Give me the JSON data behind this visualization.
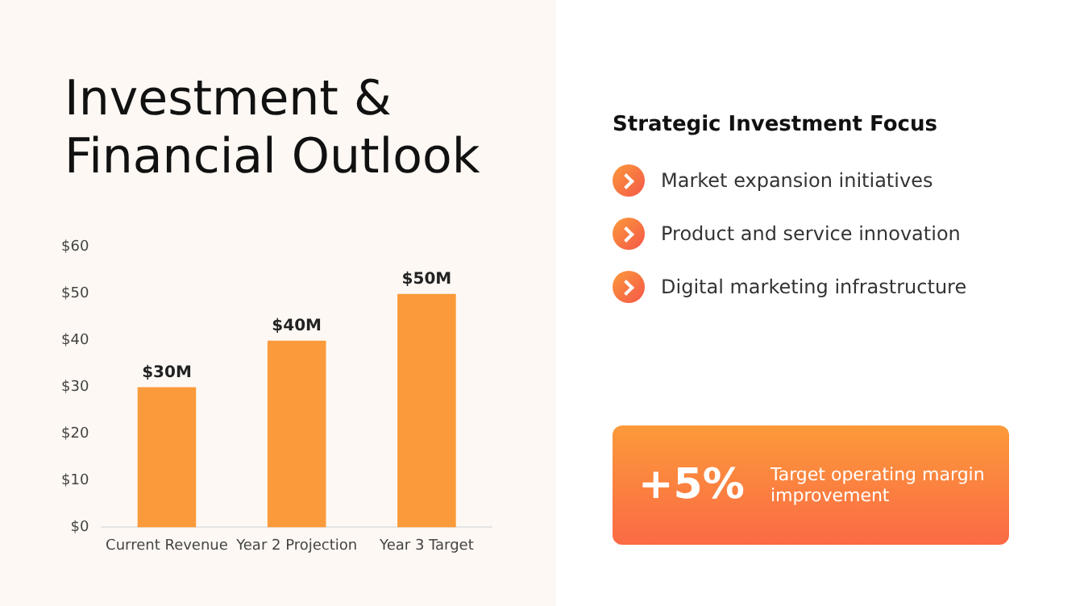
{
  "chart_data": [
    {
      "type": "bar",
      "title": "Investment & Financial Outlook",
      "categories": [
        "Current Revenue",
        "Year 2 Projection",
        "Year 3 Target"
      ],
      "values": [
        30,
        40,
        50
      ],
      "color": "#fb9a3a",
      "value_labels": [
        "$30M",
        "$40M",
        "$50M"
      ],
      "ylim": [
        0,
        60
      ],
      "yticks": [
        {
          "value": 0,
          "label": "$0"
        },
        {
          "value": 10,
          "label": "$10"
        },
        {
          "value": 20,
          "label": "$20"
        },
        {
          "value": 30,
          "label": "$30"
        },
        {
          "value": 40,
          "label": "$40"
        },
        {
          "value": 50,
          "label": "$50"
        },
        {
          "value": 60,
          "label": "$60"
        }
      ],
      "grid": false
    },
    {
      "type": "other",
      "title": "Strategic Investment Focus",
      "annotations": [
        "Market expansion initiatives",
        "Product and service innovation",
        "Digital marketing infrastructure"
      ]
    },
    {
      "type": "other",
      "title": "+5%",
      "subtitle": "Target operating margin improvement"
    }
  ]
}
